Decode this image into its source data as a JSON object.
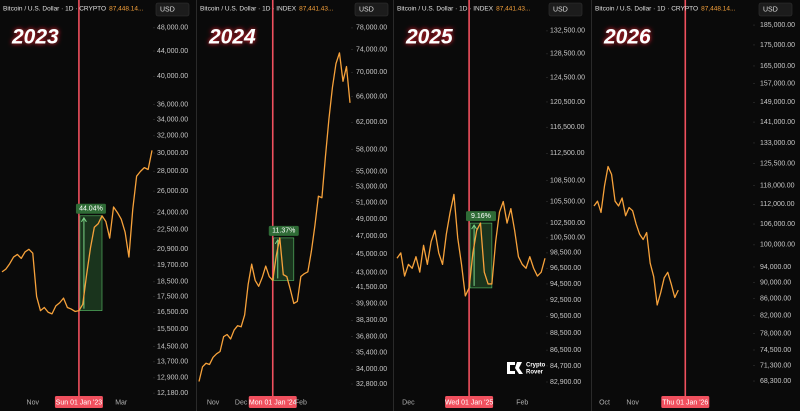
{
  "chart_data": [
    {
      "type": "line",
      "title": "2023",
      "header": "Bitcoin / U.S. Dollar · 1D · CRYPTO",
      "price": "87,448.14...",
      "currency": "USD",
      "annotation": "44.04%",
      "log_scale": true,
      "color": "#f7a23b",
      "marker_color": "#f0505e",
      "categories": [
        null,
        null,
        null,
        null,
        null,
        null,
        null,
        null,
        "Nov",
        null,
        null,
        null,
        null,
        null,
        null,
        null,
        null,
        null,
        null,
        null,
        "Sun 01 Jan '23",
        null,
        null,
        null,
        null,
        null,
        null,
        null,
        null,
        null,
        null,
        "Mar",
        null,
        null,
        null,
        null,
        null,
        null,
        null,
        null
      ],
      "values": [
        19200,
        19400,
        19800,
        20300,
        20500,
        20200,
        20700,
        20900,
        20600,
        17500,
        16600,
        16800,
        16500,
        16400,
        16900,
        17100,
        17400,
        16800,
        16700,
        16550,
        16600,
        17000,
        19000,
        21000,
        22700,
        23000,
        23700,
        23200,
        21800,
        24500,
        24000,
        23400,
        22300,
        20300,
        24300,
        27500,
        28000,
        28400,
        28200,
        30300
      ],
      "ylim": [
        11870,
        49800
      ],
      "yticks": [
        {
          "value": 48000,
          "label": "48,000.00"
        },
        {
          "value": 44000,
          "label": "44,000.00"
        },
        {
          "value": 40000,
          "label": "40,000.00"
        },
        {
          "value": 36000,
          "label": "36,000.00"
        },
        {
          "value": 34000,
          "label": "34,000.00"
        },
        {
          "value": 32000,
          "label": "32,000.00"
        },
        {
          "value": 30000,
          "label": "30,000.00"
        },
        {
          "value": 28000,
          "label": "28,000.00"
        },
        {
          "value": 26000,
          "label": "26,000.00"
        },
        {
          "value": 24000,
          "label": "24,000.00"
        },
        {
          "value": 22500,
          "label": "22,500.00"
        },
        {
          "value": 20900,
          "label": "20,900.00"
        },
        {
          "value": 19700,
          "label": "19,700.00"
        },
        {
          "value": 18500,
          "label": "18,500.00"
        },
        {
          "value": 17500,
          "label": "17,500.00"
        },
        {
          "value": 16500,
          "label": "16,500.00"
        },
        {
          "value": 15500,
          "label": "15,500.00"
        },
        {
          "value": 14500,
          "label": "14,500.00"
        },
        {
          "value": 13700,
          "label": "13,700.00"
        },
        {
          "value": 12900,
          "label": "12,900.00"
        },
        {
          "value": 12180,
          "label": "12,180.00"
        }
      ]
    },
    {
      "type": "line",
      "title": "2024",
      "header": "Bitcoin / U.S. Dollar · 1D · INDEX",
      "price": "87,441.43...",
      "currency": "USD",
      "annotation": "11.37%",
      "log_scale": true,
      "color": "#f7a23b",
      "marker_color": "#f0505e",
      "categories": [
        null,
        null,
        null,
        null,
        "Nov",
        null,
        null,
        null,
        null,
        null,
        null,
        null,
        "Dec",
        null,
        null,
        null,
        null,
        null,
        null,
        null,
        null,
        "Mon 01 Jan '24",
        null,
        null,
        null,
        null,
        null,
        null,
        null,
        "Feb",
        null,
        null,
        null,
        null,
        null,
        null,
        null,
        null,
        null,
        null,
        null,
        null,
        null,
        null
      ],
      "values": [
        33000,
        34200,
        34500,
        34400,
        35000,
        35300,
        35500,
        36800,
        37000,
        36600,
        37400,
        37800,
        37700,
        38800,
        41800,
        43900,
        42200,
        41600,
        42500,
        43700,
        42600,
        42200,
        44800,
        46800,
        42800,
        42600,
        41300,
        39900,
        40100,
        42600,
        42900,
        43100,
        45300,
        48200,
        51800,
        51600,
        57000,
        62500,
        67500,
        71500,
        73400,
        68500,
        71000,
        65000
      ],
      "ylim": [
        31550,
        79900
      ],
      "yticks": [
        {
          "value": 78000,
          "label": "78,000.00"
        },
        {
          "value": 74000,
          "label": "74,000.00"
        },
        {
          "value": 70000,
          "label": "70,000.00"
        },
        {
          "value": 66000,
          "label": "66,000.00"
        },
        {
          "value": 62000,
          "label": "62,000.00"
        },
        {
          "value": 58000,
          "label": "58,000.00"
        },
        {
          "value": 55000,
          "label": "55,000.00"
        },
        {
          "value": 53000,
          "label": "53,000.00"
        },
        {
          "value": 51000,
          "label": "51,000.00"
        },
        {
          "value": 49000,
          "label": "49,000.00"
        },
        {
          "value": 47000,
          "label": "47,000.00"
        },
        {
          "value": 45000,
          "label": "45,000.00"
        },
        {
          "value": 43000,
          "label": "43,000.00"
        },
        {
          "value": 41500,
          "label": "41,500.00"
        },
        {
          "value": 39900,
          "label": "39,900.00"
        },
        {
          "value": 38300,
          "label": "38,300.00"
        },
        {
          "value": 36800,
          "label": "36,800.00"
        },
        {
          "value": 35400,
          "label": "35,400.00"
        },
        {
          "value": 34000,
          "label": "34,000.00"
        },
        {
          "value": 32800,
          "label": "32,800.00"
        }
      ]
    },
    {
      "type": "line",
      "title": "2025",
      "header": "Bitcoin / U.S. Dollar · 1D · INDEX",
      "price": "87,441.43...",
      "currency": "USD",
      "annotation": "9.16%",
      "watermark": [
        "Crypto",
        "Rover"
      ],
      "log_scale": true,
      "color": "#f7a23b",
      "marker_color": "#f0505e",
      "categories": [
        null,
        null,
        null,
        "Dec",
        null,
        null,
        null,
        null,
        null,
        null,
        null,
        null,
        null,
        null,
        null,
        null,
        null,
        null,
        null,
        "Wed 01 Jan '25",
        null,
        null,
        null,
        null,
        null,
        null,
        null,
        null,
        null,
        null,
        null,
        null,
        null,
        "Feb",
        null,
        null,
        null,
        null,
        null,
        null
      ],
      "values": [
        97800,
        98500,
        95500,
        97000,
        96500,
        98000,
        96000,
        99500,
        97000,
        100000,
        101500,
        98500,
        97000,
        101000,
        104000,
        106500,
        100500,
        97000,
        93000,
        94000,
        98500,
        101500,
        102500,
        96000,
        94500,
        94500,
        100000,
        104000,
        105500,
        102500,
        104500,
        101500,
        98000,
        97000,
        96500,
        98000,
        96500,
        95500,
        96000,
        97800
      ],
      "ylim": [
        80930,
        134800
      ],
      "yticks": [
        {
          "value": 132500,
          "label": "132,500.00"
        },
        {
          "value": 128500,
          "label": "128,500.00"
        },
        {
          "value": 124500,
          "label": "124,500.00"
        },
        {
          "value": 120500,
          "label": "120,500.00"
        },
        {
          "value": 116500,
          "label": "116,500.00"
        },
        {
          "value": 112500,
          "label": "112,500.00"
        },
        {
          "value": 108500,
          "label": "108,500.00"
        },
        {
          "value": 105500,
          "label": "105,500.00"
        },
        {
          "value": 102500,
          "label": "102,500.00"
        },
        {
          "value": 100500,
          "label": "100,500.00"
        },
        {
          "value": 98500,
          "label": "98,500.00"
        },
        {
          "value": 96500,
          "label": "96,500.00"
        },
        {
          "value": 94500,
          "label": "94,500.00"
        },
        {
          "value": 92500,
          "label": "92,500.00"
        },
        {
          "value": 90500,
          "label": "90,500.00"
        },
        {
          "value": 88500,
          "label": "88,500.00"
        },
        {
          "value": 86500,
          "label": "86,500.00"
        },
        {
          "value": 84700,
          "label": "84,700.00"
        },
        {
          "value": 82900,
          "label": "82,900.00"
        }
      ]
    },
    {
      "type": "line",
      "title": "2026",
      "header": "Bitcoin / U.S. Dollar · 1D · CRYPTO",
      "price": "87,448.14...",
      "currency": "USD",
      "log_scale": true,
      "color": "#f7a23b",
      "marker_color": "#f0505e",
      "categories": [
        null,
        null,
        null,
        "Oct",
        null,
        null,
        null,
        null,
        null,
        null,
        null,
        "Nov",
        null,
        null,
        null,
        null,
        null,
        null,
        null,
        null,
        null,
        null,
        null,
        null,
        null,
        null,
        "Thu 01 Jan '26",
        null,
        null,
        null,
        null,
        null,
        null,
        null,
        null,
        null,
        null,
        null,
        null,
        null,
        null,
        null,
        null,
        null,
        null,
        null
      ],
      "values": [
        111500,
        113000,
        109500,
        118000,
        124500,
        121800,
        113000,
        111500,
        114000,
        108500,
        111000,
        110000,
        106000,
        103000,
        101500,
        103500,
        95000,
        91500,
        84500,
        87500,
        91200,
        92600,
        89600,
        86300,
        88100,
        null,
        null,
        null,
        null,
        null,
        null,
        null,
        null,
        null,
        null,
        null,
        null,
        null,
        null,
        null,
        null,
        null,
        null,
        null,
        null,
        null
      ],
      "ylim": [
        64770,
        188700
      ],
      "yticks": [
        {
          "value": 185000,
          "label": "185,000.00"
        },
        {
          "value": 175000,
          "label": "175,000.00"
        },
        {
          "value": 165000,
          "label": "165,000.00"
        },
        {
          "value": 157000,
          "label": "157,000.00"
        },
        {
          "value": 149000,
          "label": "149,000.00"
        },
        {
          "value": 141000,
          "label": "141,000.00"
        },
        {
          "value": 133000,
          "label": "133,000.00"
        },
        {
          "value": 125500,
          "label": "125,500.00"
        },
        {
          "value": 118000,
          "label": "118,000.00"
        },
        {
          "value": 112000,
          "label": "112,000.00"
        },
        {
          "value": 106000,
          "label": "106,000.00"
        },
        {
          "value": 100000,
          "label": "100,000.00"
        },
        {
          "value": 94000,
          "label": "94,000.00"
        },
        {
          "value": 90000,
          "label": "90,000.00"
        },
        {
          "value": 86000,
          "label": "86,000.00"
        },
        {
          "value": 82000,
          "label": "82,000.00"
        },
        {
          "value": 78000,
          "label": "78,000.00"
        },
        {
          "value": 74500,
          "label": "74,500.00"
        },
        {
          "value": 71300,
          "label": "71,300.00"
        },
        {
          "value": 68300,
          "label": "68,300.00"
        }
      ]
    }
  ]
}
